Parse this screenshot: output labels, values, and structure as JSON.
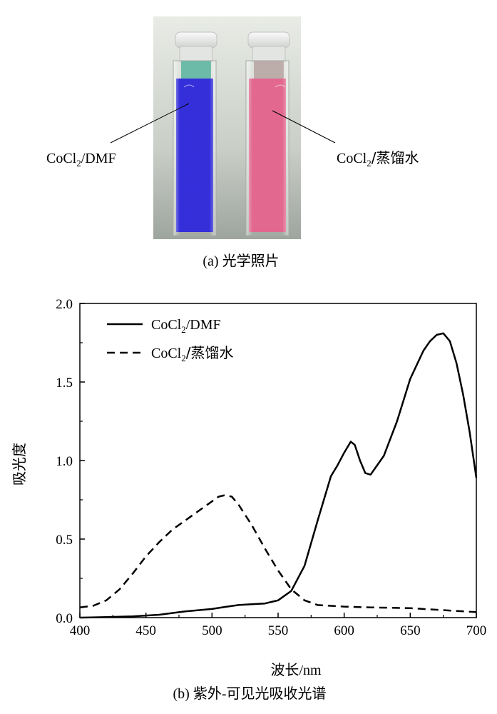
{
  "photo": {
    "left_label_formula": "CoCl",
    "left_label_sub": "2",
    "left_label_suffix": "/DMF",
    "right_label_formula": "CoCl",
    "right_label_sub": "2",
    "right_label_suffix": "/蒸馏水",
    "left_solution_color": "#2a24d8",
    "right_solution_color": "#e0608a",
    "caption": "(a) 光学照片"
  },
  "chart_data": {
    "type": "line",
    "caption": "(b) 紫外-可见光吸收光谱",
    "xlabel_cn": "波长",
    "xlabel_unit": "/nm",
    "ylabel": "吸光度",
    "xlim": [
      400,
      700
    ],
    "ylim": [
      0,
      2.0
    ],
    "x_ticks": [
      400,
      450,
      500,
      550,
      600,
      650,
      700
    ],
    "y_ticks": [
      0.0,
      0.5,
      1.0,
      1.5,
      2.0
    ],
    "x_tick_labels": [
      "400",
      "450",
      "500",
      "550",
      "600",
      "650",
      "700"
    ],
    "y_tick_labels": [
      "0.0",
      "0.5",
      "1.0",
      "1.5",
      "2.0"
    ],
    "legend_position": "top-left",
    "series": [
      {
        "name_formula": "CoCl",
        "name_sub": "2",
        "name_suffix": "/DMF",
        "style": "solid",
        "color": "#000000",
        "x": [
          400,
          420,
          440,
          460,
          480,
          500,
          510,
          520,
          530,
          540,
          550,
          560,
          570,
          580,
          590,
          595,
          600,
          605,
          608,
          612,
          616,
          620,
          625,
          630,
          640,
          650,
          660,
          665,
          670,
          675,
          680,
          685,
          690,
          695,
          700
        ],
        "y": [
          0.0,
          0.003,
          0.008,
          0.018,
          0.04,
          0.055,
          0.068,
          0.08,
          0.085,
          0.09,
          0.11,
          0.17,
          0.33,
          0.62,
          0.9,
          0.97,
          1.05,
          1.12,
          1.1,
          1.0,
          0.92,
          0.91,
          0.97,
          1.03,
          1.25,
          1.52,
          1.7,
          1.76,
          1.8,
          1.81,
          1.76,
          1.62,
          1.42,
          1.18,
          0.89
        ]
      },
      {
        "name_formula": "CoCl",
        "name_sub": "2",
        "name_suffix": "/蒸馏水",
        "style": "dashed",
        "color": "#000000",
        "x": [
          400,
          410,
          420,
          430,
          440,
          450,
          460,
          470,
          480,
          490,
          500,
          505,
          510,
          515,
          520,
          530,
          540,
          550,
          560,
          570,
          580,
          600,
          620,
          650,
          680,
          700
        ],
        "y": [
          0.065,
          0.075,
          0.11,
          0.18,
          0.28,
          0.39,
          0.48,
          0.56,
          0.62,
          0.68,
          0.74,
          0.77,
          0.78,
          0.77,
          0.72,
          0.59,
          0.44,
          0.3,
          0.18,
          0.11,
          0.08,
          0.07,
          0.065,
          0.06,
          0.045,
          0.035
        ]
      }
    ]
  }
}
